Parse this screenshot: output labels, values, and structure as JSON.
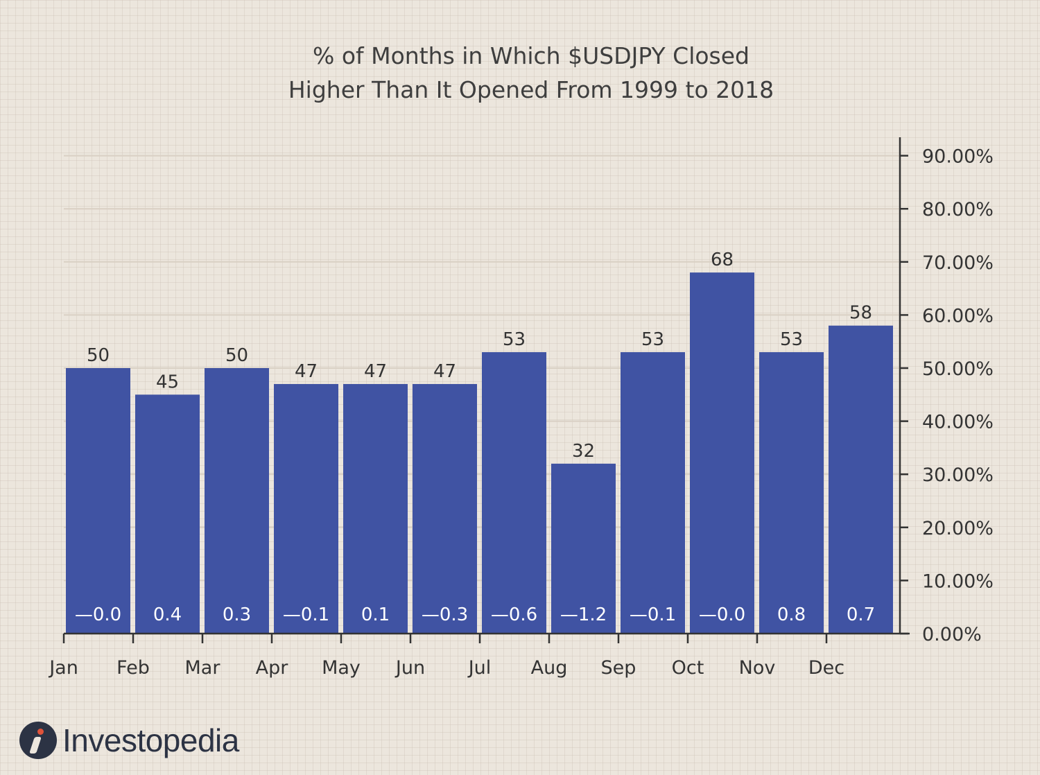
{
  "chart_data": {
    "type": "bar",
    "title_lines": [
      "% of Months in Which $USDJPY Closed",
      "Higher Than It Opened From 1999 to 2018"
    ],
    "categories": [
      "Jan",
      "Feb",
      "Mar",
      "Apr",
      "May",
      "Jun",
      "Jul",
      "Aug",
      "Sep",
      "Oct",
      "Nov",
      "Dec"
    ],
    "values": [
      50,
      45,
      50,
      47,
      47,
      47,
      53,
      32,
      53,
      68,
      53,
      58
    ],
    "value_labels": [
      "50",
      "45",
      "50",
      "47",
      "47",
      "47",
      "53",
      "32",
      "53",
      "68",
      "53",
      "58"
    ],
    "inner_labels": [
      "—0.0",
      "0.4",
      "0.3",
      "—0.1",
      "0.1",
      "—0.3",
      "—0.6",
      "—1.2",
      "—0.1",
      "—0.0",
      "0.8",
      "0.7"
    ],
    "y_ticks": [
      "0.00%",
      "10.00%",
      "20.00%",
      "30.00%",
      "40.00%",
      "50.00%",
      "60.00%",
      "70.00%",
      "80.00%",
      "90.00%"
    ],
    "ylim": [
      0,
      93
    ],
    "yaxis_position": "right",
    "grid": true,
    "colors": {
      "bar": "#4053a3",
      "axis": "#333333",
      "grid": "#d9d0c4",
      "background": "#ece6dd"
    }
  },
  "brand": {
    "name": "Investopedia"
  }
}
